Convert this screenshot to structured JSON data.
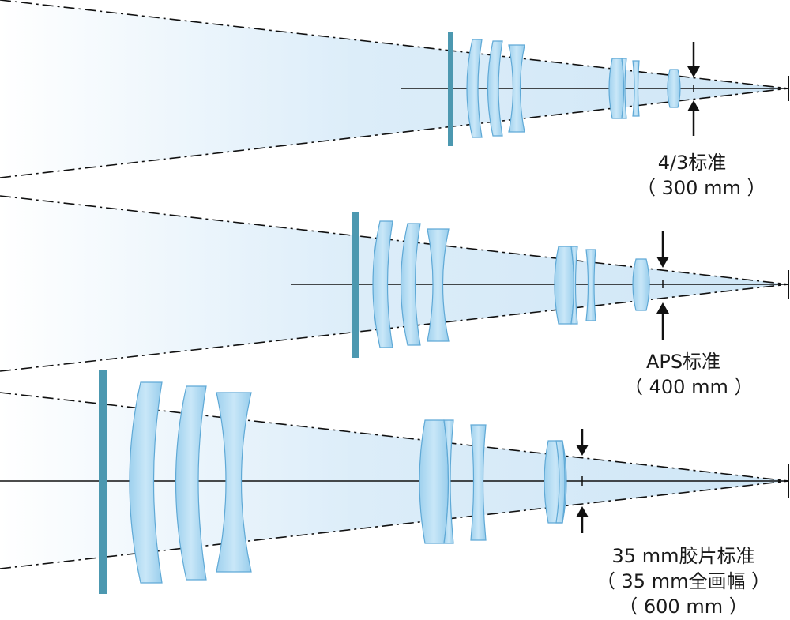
{
  "colors": {
    "light_fill": "#ddeef9",
    "lens_fill": "#a9d7f0",
    "lens_stroke": "#5fa9d6",
    "stop_bar": "#4c98b0",
    "axis": "#111111"
  },
  "diagrams": [
    {
      "id": "four-thirds",
      "lines": [
        "4/3标准",
        "（ 300 mm ）"
      ]
    },
    {
      "id": "aps",
      "lines": [
        "APS标准",
        "（ 400 mm ）"
      ]
    },
    {
      "id": "full-frame",
      "lines": [
        "35 mm胶片标准",
        "（ 35 mm全画幅 ）",
        "（ 600 mm ）"
      ]
    }
  ]
}
